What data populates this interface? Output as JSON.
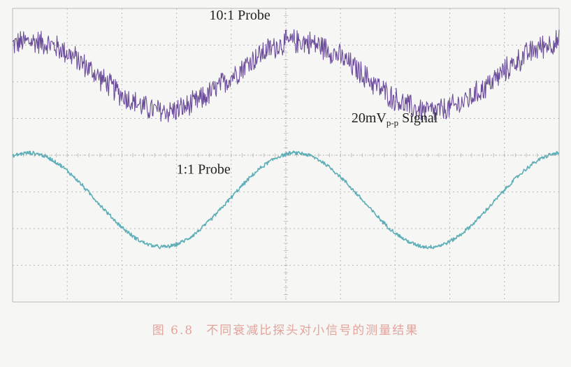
{
  "figure": {
    "caption_number": "图 6.8",
    "caption_text": "不同衰减比探头对小信号的测量结果"
  },
  "colors": {
    "background": "#f6f6f4",
    "grid": "#b9b9b9",
    "trace_10x": "#6b4c9a",
    "trace_1x": "#5eaeb8",
    "caption": "#e3a39a",
    "text": "#222222"
  },
  "chart_data": {
    "type": "line",
    "title": "",
    "xlabel": "",
    "ylabel": "",
    "grid": true,
    "x_divisions": 10,
    "y_divisions": 8,
    "xlim": [
      0,
      10
    ],
    "ylim": [
      0,
      8
    ],
    "annotations": [
      {
        "text": "10:1 Probe",
        "x": 3.6,
        "y": 7.7
      },
      {
        "text": "1:1 Probe",
        "x": 3.0,
        "y": 3.5
      },
      {
        "text": "20mV",
        "sub": "p-p",
        "suffix": " Signal",
        "x": 6.2,
        "y": 4.9
      }
    ],
    "series": [
      {
        "key": "probe_10x",
        "amplitude_div": 0.95,
        "offset_div": 6.15,
        "phase_x": 0.35,
        "cycles": 2.05,
        "noise_div": 0.38,
        "points": 900
      },
      {
        "key": "probe_1x",
        "amplitude_div": 1.28,
        "offset_div": 2.78,
        "phase_x": 0.3,
        "cycles": 2.05,
        "noise_div": 0.06,
        "points": 900
      }
    ]
  }
}
